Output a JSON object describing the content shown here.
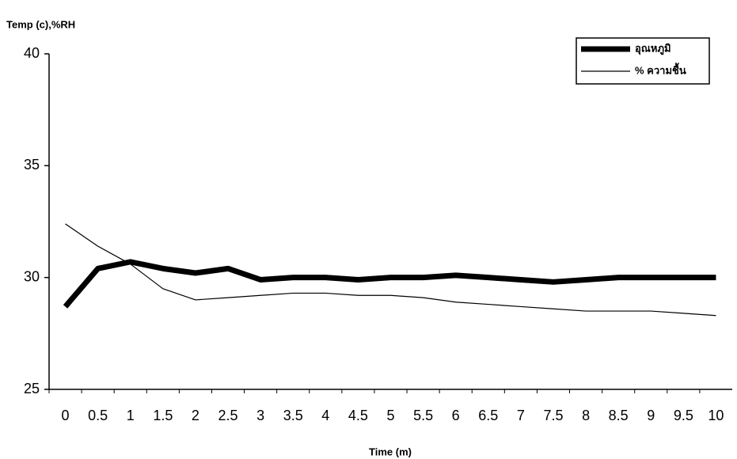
{
  "chart_data": {
    "type": "line",
    "y_label": "Temp (c),%RH",
    "x_label": "Time (m)",
    "categories": [
      "0",
      "0.5",
      "1",
      "1.5",
      "2",
      "2.5",
      "3",
      "3.5",
      "4",
      "4.5",
      "5",
      "5.5",
      "6",
      "6.5",
      "7",
      "7.5",
      "8",
      "8.5",
      "9",
      "9.5",
      "10"
    ],
    "series": [
      {
        "name": "อุณหภูมิ",
        "color": "#000000",
        "width": 7,
        "values": [
          28.7,
          30.4,
          30.7,
          30.4,
          30.2,
          30.4,
          29.9,
          30.0,
          30.0,
          29.9,
          30.0,
          30.0,
          30.1,
          30.0,
          29.9,
          29.8,
          29.9,
          30.0,
          30.0,
          30.0,
          30.0
        ]
      },
      {
        "name": "% ความชื้น",
        "color": "#000000",
        "width": 1.2,
        "values": [
          32.4,
          31.4,
          30.6,
          29.5,
          29.0,
          29.1,
          29.2,
          29.3,
          29.3,
          29.2,
          29.2,
          29.1,
          28.9,
          28.8,
          28.7,
          28.6,
          28.5,
          28.5,
          28.5,
          28.4,
          28.3
        ]
      }
    ],
    "ylim": [
      25,
      40
    ],
    "yticks": [
      25,
      30,
      35,
      40
    ],
    "grid": false,
    "legend": "top-right"
  }
}
